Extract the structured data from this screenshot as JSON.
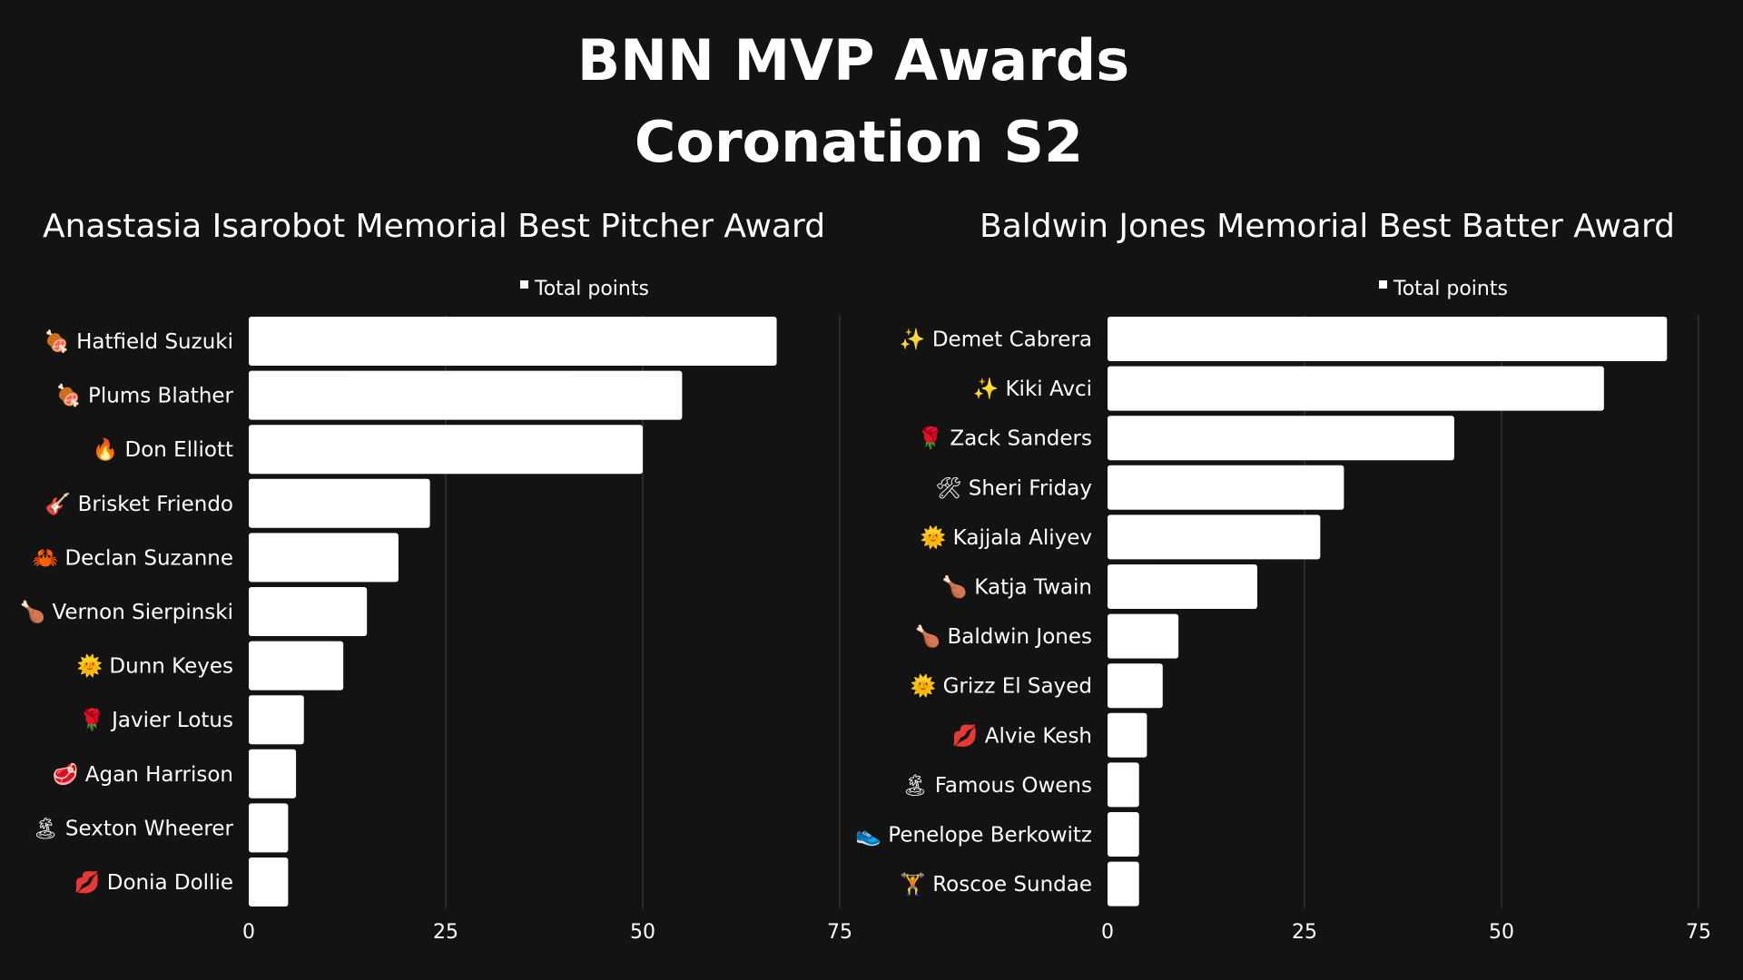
{
  "title_line1": "BNN MVP Awards",
  "title_line2": "Coronation S2",
  "colors": {
    "background": "#131313",
    "bar": "#ffffff",
    "grid": "#3a3a3a",
    "text": "#ffffff"
  },
  "chart_data": [
    {
      "type": "bar",
      "orientation": "horizontal",
      "title": "Anastasia Isarobot Memorial Best Pitcher Award",
      "legend_position": "top",
      "grid": true,
      "xlim": [
        0,
        75
      ],
      "ticks": [
        0,
        25,
        50,
        75
      ],
      "series": [
        {
          "name": "Total points"
        }
      ],
      "categories": [
        {
          "emoji": "🍖",
          "name": "Hatfield Suzuki"
        },
        {
          "emoji": "🍖",
          "name": "Plums Blather"
        },
        {
          "emoji": "🔥",
          "name": "Don Elliott"
        },
        {
          "emoji": "🎸",
          "name": "Brisket Friendo"
        },
        {
          "emoji": "🦀",
          "name": "Declan Suzanne"
        },
        {
          "emoji": "🍗",
          "name": "Vernon Sierpinski"
        },
        {
          "emoji": "🌞",
          "name": "Dunn Keyes"
        },
        {
          "emoji": "🌹",
          "name": "Javier Lotus"
        },
        {
          "emoji": "🥩",
          "name": "Agan Harrison"
        },
        {
          "emoji": "🏝",
          "name": "Sexton Wheerer"
        },
        {
          "emoji": "💋",
          "name": "Donia Dollie"
        }
      ],
      "values": [
        67,
        55,
        50,
        23,
        19,
        15,
        12,
        7,
        6,
        5,
        5
      ]
    },
    {
      "type": "bar",
      "orientation": "horizontal",
      "title": "Baldwin Jones Memorial Best Batter Award",
      "legend_position": "top",
      "grid": true,
      "xlim": [
        0,
        75
      ],
      "ticks": [
        0,
        25,
        50,
        75
      ],
      "series": [
        {
          "name": "Total points"
        }
      ],
      "categories": [
        {
          "emoji": "✨",
          "name": "Demet Cabrera"
        },
        {
          "emoji": "✨",
          "name": "Kiki Avci"
        },
        {
          "emoji": "🌹",
          "name": "Zack Sanders"
        },
        {
          "emoji": "🛠",
          "name": "Sheri Friday"
        },
        {
          "emoji": "🌞",
          "name": "Kajjala Aliyev"
        },
        {
          "emoji": "🍗",
          "name": "Katja Twain"
        },
        {
          "emoji": "🍗",
          "name": "Baldwin Jones"
        },
        {
          "emoji": "🌞",
          "name": "Grizz El Sayed"
        },
        {
          "emoji": "💋",
          "name": "Alvie Kesh"
        },
        {
          "emoji": "🏝",
          "name": "Famous Owens"
        },
        {
          "emoji": "👟",
          "name": "Penelope Berkowitz"
        },
        {
          "emoji": "🏋",
          "name": "Roscoe Sundae"
        }
      ],
      "values": [
        71,
        63,
        44,
        30,
        27,
        19,
        9,
        7,
        5,
        4,
        4,
        4
      ]
    }
  ]
}
